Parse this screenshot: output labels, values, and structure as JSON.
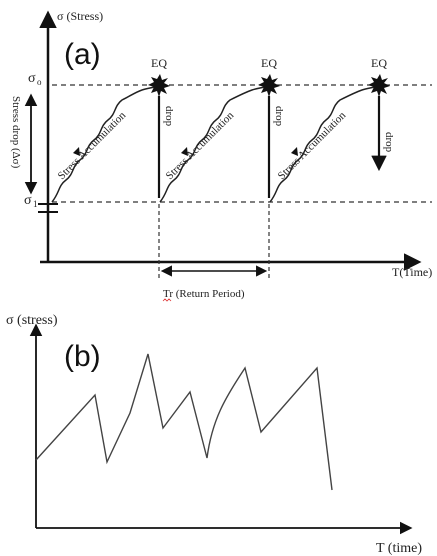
{
  "panel_a": {
    "label": "(a)",
    "y_axis_label": "σ (Stress)",
    "x_axis_label": "T(Time)",
    "sigma_o": "σ",
    "sigma_o_sub": "o",
    "sigma_1": "σ",
    "sigma_1_sub": "1",
    "stress_drop_label": "Stress drop (Δσ)",
    "eq_label": "EQ",
    "drop_label": "drop",
    "accumulation_label": "Stress Accumulation",
    "return_period_label": "Tr (Return Period)"
  },
  "panel_b": {
    "label": "(b)",
    "y_axis_label": "σ (stress)",
    "x_axis_label": "T (time)"
  }
}
